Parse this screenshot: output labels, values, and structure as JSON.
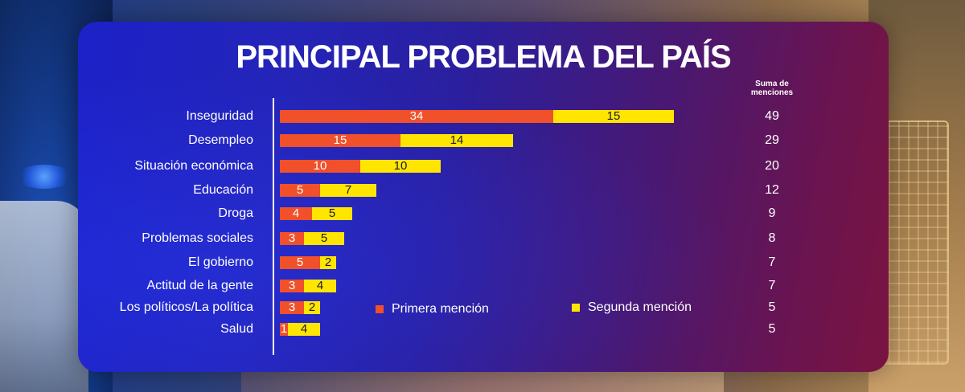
{
  "chart_data": {
    "type": "bar",
    "orientation": "horizontal",
    "stacked": true,
    "title": "PRINCIPAL PROBLEMA DEL PAÍS",
    "sum_header": "Suma de menciones",
    "categories": [
      "Inseguridad",
      "Desempleo",
      "Situación económica",
      "Educación",
      "Droga",
      "Problemas sociales",
      "El gobierno",
      "Actitud de la gente",
      "Los políticos/La política",
      "Salud"
    ],
    "series": [
      {
        "name": "Primera mención",
        "color": "#f0502a",
        "values": [
          34,
          15,
          10,
          5,
          4,
          3,
          5,
          3,
          3,
          1
        ]
      },
      {
        "name": "Segunda mención",
        "color": "#ffe500",
        "values": [
          15,
          14,
          10,
          7,
          5,
          5,
          2,
          4,
          2,
          4
        ]
      }
    ],
    "totals": [
      49,
      29,
      20,
      12,
      9,
      8,
      7,
      7,
      5,
      5
    ],
    "legend_position": "inside-bottom-right",
    "grid": false
  }
}
